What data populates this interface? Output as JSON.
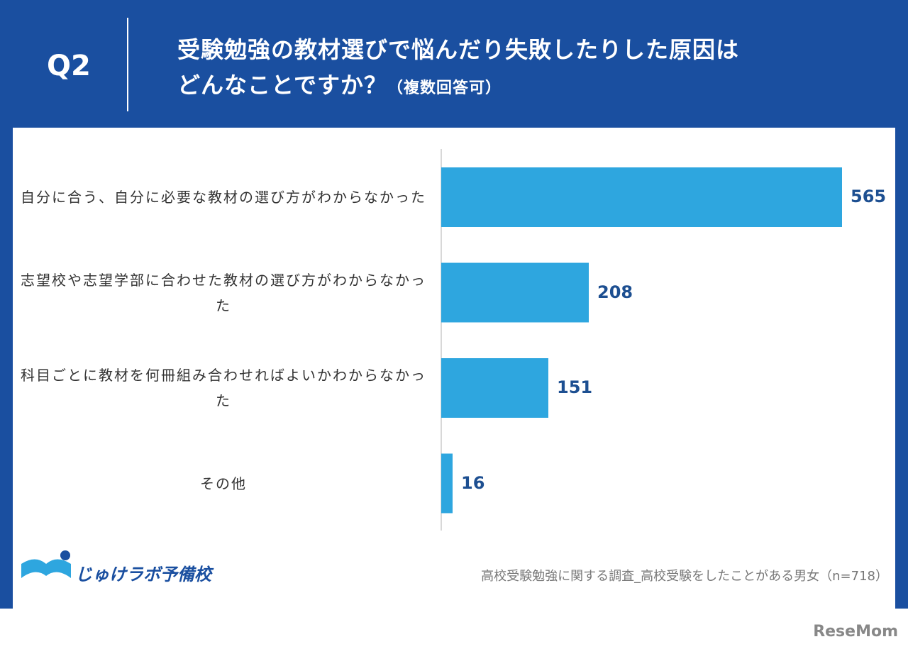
{
  "chart_data": {
    "type": "bar",
    "question": "Q2",
    "title": "受験勉強の教材選びで悩んだり失敗したりした原因は",
    "title_line2": "どんなことですか？",
    "subtitle": "（複数回答可）",
    "categories": [
      "自分に合う、自分に必要な教材の選び方がわからなかった",
      "志望校や志望学部に合わせた教材の選び方がわからなかった",
      "科目ごとに教材を何冊組み合わせればよいかわからなかった",
      "その他"
    ],
    "values": [
      565,
      208,
      151,
      16
    ],
    "color": "#2ea6df",
    "source": "高校受験勉強に関する調査_高校受験をしたことがある男女（n=718）"
  },
  "branding": {
    "logo": "じゅけラボ予備校",
    "watermark": "ReseMom"
  }
}
